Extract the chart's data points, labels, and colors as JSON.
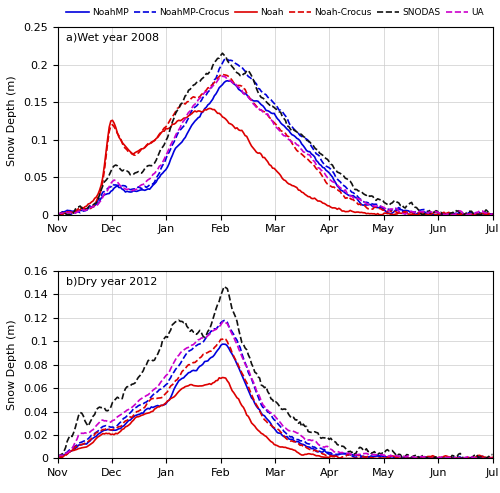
{
  "title_a": "a)Wet year 2008",
  "title_b": "b)Dry year 2012",
  "ylabel": "Snow Depth (m)",
  "ylim_a": [
    0,
    0.25
  ],
  "ylim_b": [
    0,
    0.16
  ],
  "yticks_a": [
    0,
    0.05,
    0.1,
    0.15,
    0.2,
    0.25
  ],
  "yticks_b": [
    0,
    0.02,
    0.04,
    0.06,
    0.08,
    0.1,
    0.12,
    0.14,
    0.16
  ],
  "xtick_labels": [
    "Nov",
    "Dec",
    "Jan",
    "Feb",
    "Mar",
    "Apr",
    "May",
    "Jun",
    "Jul"
  ],
  "series": [
    {
      "label": "NoahMP",
      "color": "#0000dd",
      "linestyle": "solid",
      "linewidth": 1.2
    },
    {
      "label": "NoahMP-Crocus",
      "color": "#0000dd",
      "linestyle": "dashed",
      "linewidth": 1.2
    },
    {
      "label": "Noah",
      "color": "#dd0000",
      "linestyle": "solid",
      "linewidth": 1.2
    },
    {
      "label": "Noah-Crocus",
      "color": "#dd0000",
      "linestyle": "dashed",
      "linewidth": 1.2
    },
    {
      "label": "SNODAS",
      "color": "#111111",
      "linestyle": "dashed",
      "linewidth": 1.2
    },
    {
      "label": "UA",
      "color": "#cc00cc",
      "linestyle": "dashed",
      "linewidth": 1.2
    }
  ]
}
